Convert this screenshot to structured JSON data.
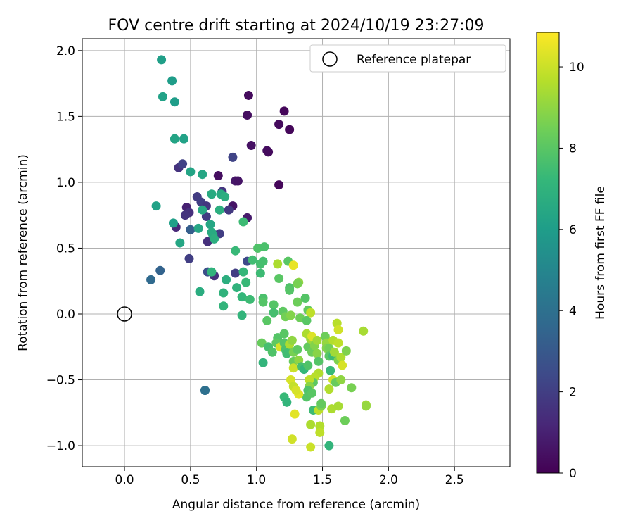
{
  "chart_data": {
    "type": "scatter",
    "title": "FOV centre drift starting at 2024/10/19 23:27:09",
    "xlabel": "Angular distance from reference (arcmin)",
    "ylabel": "Rotation from reference (arcmin)",
    "xlim": [
      -0.32,
      2.92
    ],
    "ylim": [
      -1.16,
      2.09
    ],
    "xticks": [
      "0.0",
      "0.5",
      "1.0",
      "1.5",
      "2.0",
      "2.5"
    ],
    "yticks": [
      "−1.0",
      "−0.5",
      "0.0",
      "0.5",
      "1.0",
      "1.5",
      "2.0"
    ],
    "xtick_values": [
      0,
      0.5,
      1.0,
      1.5,
      2.0,
      2.5
    ],
    "ytick_values": [
      -1.0,
      -0.5,
      0,
      0.5,
      1.0,
      1.5,
      2.0
    ],
    "grid": true,
    "legend": {
      "placement": "top-right",
      "label": "Reference platepar",
      "marker": "open-circle"
    },
    "reference_point": {
      "x": 0.0,
      "y": 0.0
    },
    "colorbar": {
      "label": "Hours from first FF file",
      "range": [
        0,
        10.85
      ],
      "ticks": [
        "0",
        "2",
        "4",
        "6",
        "8",
        "10"
      ],
      "tick_values": [
        0,
        2,
        4,
        6,
        8,
        10
      ],
      "colormap": "viridis",
      "stops": [
        "#440154",
        "#482878",
        "#3e4a89",
        "#31688e",
        "#26828e",
        "#1f9e89",
        "#35b779",
        "#6ece58",
        "#b5de2b",
        "#fde725"
      ]
    },
    "points": [
      {
        "x": 0.94,
        "y": 1.66,
        "c": 0.3
      },
      {
        "x": 0.93,
        "y": 1.51,
        "c": 0.4
      },
      {
        "x": 1.21,
        "y": 1.54,
        "c": 0.2
      },
      {
        "x": 1.17,
        "y": 1.44,
        "c": 0.3
      },
      {
        "x": 1.25,
        "y": 1.4,
        "c": 0.2
      },
      {
        "x": 0.96,
        "y": 1.28,
        "c": 0.5
      },
      {
        "x": 1.08,
        "y": 1.24,
        "c": 0.4
      },
      {
        "x": 1.09,
        "y": 1.23,
        "c": 0.3
      },
      {
        "x": 1.17,
        "y": 0.98,
        "c": 0.2
      },
      {
        "x": 0.71,
        "y": 1.05,
        "c": 0.4
      },
      {
        "x": 0.84,
        "y": 1.01,
        "c": 0.7
      },
      {
        "x": 0.86,
        "y": 1.01,
        "c": 0.6
      },
      {
        "x": 0.82,
        "y": 0.82,
        "c": 0.6
      },
      {
        "x": 0.93,
        "y": 0.73,
        "c": 0.8
      },
      {
        "x": 0.82,
        "y": 1.19,
        "c": 2.2
      },
      {
        "x": 0.41,
        "y": 1.11,
        "c": 1.6
      },
      {
        "x": 0.44,
        "y": 1.14,
        "c": 2.1
      },
      {
        "x": 0.47,
        "y": 0.81,
        "c": 1.0
      },
      {
        "x": 0.49,
        "y": 0.77,
        "c": 1.5
      },
      {
        "x": 0.46,
        "y": 0.75,
        "c": 1.6
      },
      {
        "x": 0.39,
        "y": 0.66,
        "c": 1.2
      },
      {
        "x": 0.5,
        "y": 0.64,
        "c": 3.2
      },
      {
        "x": 0.55,
        "y": 0.89,
        "c": 1.9
      },
      {
        "x": 0.58,
        "y": 0.85,
        "c": 2.0
      },
      {
        "x": 0.62,
        "y": 0.82,
        "c": 1.7
      },
      {
        "x": 0.62,
        "y": 0.74,
        "c": 1.9
      },
      {
        "x": 0.63,
        "y": 0.55,
        "c": 1.5
      },
      {
        "x": 0.72,
        "y": 0.61,
        "c": 2.0
      },
      {
        "x": 0.74,
        "y": 0.93,
        "c": 1.7
      },
      {
        "x": 0.79,
        "y": 0.79,
        "c": 1.8
      },
      {
        "x": 0.68,
        "y": 0.29,
        "c": 1.5
      },
      {
        "x": 0.63,
        "y": 0.32,
        "c": 2.6
      },
      {
        "x": 0.49,
        "y": 0.42,
        "c": 2.0
      },
      {
        "x": 0.84,
        "y": 0.31,
        "c": 2.0
      },
      {
        "x": 0.93,
        "y": 0.4,
        "c": 2.4
      },
      {
        "x": 0.2,
        "y": 0.26,
        "c": 3.7
      },
      {
        "x": 0.27,
        "y": 0.33,
        "c": 3.4
      },
      {
        "x": 0.61,
        "y": -0.58,
        "c": 3.9
      },
      {
        "x": 0.61,
        "y": -0.58,
        "c": 4.0
      },
      {
        "x": 0.28,
        "y": 1.93,
        "c": 6.1
      },
      {
        "x": 0.36,
        "y": 1.77,
        "c": 6.0
      },
      {
        "x": 0.29,
        "y": 1.65,
        "c": 6.2
      },
      {
        "x": 0.38,
        "y": 1.61,
        "c": 6.0
      },
      {
        "x": 0.38,
        "y": 1.33,
        "c": 6.3
      },
      {
        "x": 0.45,
        "y": 1.33,
        "c": 6.2
      },
      {
        "x": 0.5,
        "y": 1.08,
        "c": 6.3
      },
      {
        "x": 0.59,
        "y": 1.06,
        "c": 6.4
      },
      {
        "x": 0.24,
        "y": 0.82,
        "c": 6.2
      },
      {
        "x": 0.37,
        "y": 0.69,
        "c": 6.1
      },
      {
        "x": 0.42,
        "y": 0.54,
        "c": 6.4
      },
      {
        "x": 0.56,
        "y": 0.65,
        "c": 6.4
      },
      {
        "x": 0.59,
        "y": 0.79,
        "c": 6.5
      },
      {
        "x": 0.65,
        "y": 0.68,
        "c": 6.4
      },
      {
        "x": 0.66,
        "y": 0.91,
        "c": 6.6
      },
      {
        "x": 0.73,
        "y": 0.91,
        "c": 6.6
      },
      {
        "x": 0.76,
        "y": 0.89,
        "c": 6.8
      },
      {
        "x": 0.72,
        "y": 0.79,
        "c": 6.8
      },
      {
        "x": 0.67,
        "y": 0.6,
        "c": 6.5
      },
      {
        "x": 0.66,
        "y": 0.62,
        "c": 6.6
      },
      {
        "x": 0.68,
        "y": 0.57,
        "c": 6.8
      },
      {
        "x": 0.66,
        "y": 0.32,
        "c": 7.0
      },
      {
        "x": 0.57,
        "y": 0.17,
        "c": 6.7
      },
      {
        "x": 0.77,
        "y": 0.26,
        "c": 6.8
      },
      {
        "x": 0.75,
        "y": 0.16,
        "c": 7.0
      },
      {
        "x": 0.75,
        "y": 0.06,
        "c": 7.1
      },
      {
        "x": 0.85,
        "y": 0.2,
        "c": 7.0
      },
      {
        "x": 0.84,
        "y": 0.48,
        "c": 7.3
      },
      {
        "x": 0.9,
        "y": 0.7,
        "c": 7.4
      },
      {
        "x": 0.9,
        "y": 0.32,
        "c": 7.2
      },
      {
        "x": 0.92,
        "y": 0.24,
        "c": 7.3
      },
      {
        "x": 0.89,
        "y": 0.13,
        "c": 7.2
      },
      {
        "x": 0.95,
        "y": 0.11,
        "c": 7.4
      },
      {
        "x": 0.89,
        "y": -0.01,
        "c": 7.1
      },
      {
        "x": 0.97,
        "y": 0.41,
        "c": 7.5
      },
      {
        "x": 1.01,
        "y": 0.5,
        "c": 7.8
      },
      {
        "x": 1.03,
        "y": 0.38,
        "c": 7.6
      },
      {
        "x": 1.03,
        "y": 0.31,
        "c": 7.4
      },
      {
        "x": 1.06,
        "y": 0.51,
        "c": 7.7
      },
      {
        "x": 1.05,
        "y": 0.4,
        "c": 7.6
      },
      {
        "x": 1.05,
        "y": 0.12,
        "c": 7.7
      },
      {
        "x": 1.05,
        "y": 0.09,
        "c": 7.9
      },
      {
        "x": 1.08,
        "y": -0.05,
        "c": 8.0
      },
      {
        "x": 1.13,
        "y": 0.07,
        "c": 7.9
      },
      {
        "x": 1.13,
        "y": 0.01,
        "c": 7.6
      },
      {
        "x": 1.17,
        "y": 0.27,
        "c": 8.0
      },
      {
        "x": 1.16,
        "y": 0.38,
        "c": 9.5
      },
      {
        "x": 1.2,
        "y": 0.02,
        "c": 8.1
      },
      {
        "x": 1.24,
        "y": 0.4,
        "c": 8.0
      },
      {
        "x": 1.25,
        "y": 0.2,
        "c": 7.8
      },
      {
        "x": 1.25,
        "y": 0.18,
        "c": 7.9
      },
      {
        "x": 1.28,
        "y": 0.37,
        "c": 10.5
      },
      {
        "x": 1.32,
        "y": 0.24,
        "c": 9.0
      },
      {
        "x": 1.31,
        "y": 0.23,
        "c": 8.6
      },
      {
        "x": 1.31,
        "y": 0.09,
        "c": 8.4
      },
      {
        "x": 1.37,
        "y": 0.12,
        "c": 7.9
      },
      {
        "x": 1.22,
        "y": -0.02,
        "c": 8.5
      },
      {
        "x": 1.26,
        "y": -0.01,
        "c": 8.8
      },
      {
        "x": 1.33,
        "y": -0.03,
        "c": 8.4
      },
      {
        "x": 1.39,
        "y": 0.03,
        "c": 8.2
      },
      {
        "x": 1.41,
        "y": 0.01,
        "c": 9.8
      },
      {
        "x": 1.38,
        "y": -0.05,
        "c": 8.0
      },
      {
        "x": 1.04,
        "y": -0.22,
        "c": 8.3
      },
      {
        "x": 1.05,
        "y": -0.37,
        "c": 7.1
      },
      {
        "x": 1.09,
        "y": -0.25,
        "c": 7.6
      },
      {
        "x": 1.12,
        "y": -0.29,
        "c": 7.8
      },
      {
        "x": 1.16,
        "y": -0.18,
        "c": 7.9
      },
      {
        "x": 1.15,
        "y": -0.22,
        "c": 8.1
      },
      {
        "x": 1.18,
        "y": -0.25,
        "c": 10.2
      },
      {
        "x": 1.21,
        "y": -0.15,
        "c": 8.0
      },
      {
        "x": 1.21,
        "y": -0.22,
        "c": 7.9
      },
      {
        "x": 1.22,
        "y": -0.27,
        "c": 7.7
      },
      {
        "x": 1.23,
        "y": -0.3,
        "c": 7.5
      },
      {
        "x": 1.25,
        "y": -0.23,
        "c": 9.5
      },
      {
        "x": 1.27,
        "y": -0.2,
        "c": 9.0
      },
      {
        "x": 1.28,
        "y": -0.29,
        "c": 8.6
      },
      {
        "x": 1.28,
        "y": -0.36,
        "c": 8.3
      },
      {
        "x": 1.28,
        "y": -0.41,
        "c": 10.0
      },
      {
        "x": 1.31,
        "y": -0.27,
        "c": 8.1
      },
      {
        "x": 1.32,
        "y": -0.35,
        "c": 9.0
      },
      {
        "x": 1.34,
        "y": -0.4,
        "c": 7.6
      },
      {
        "x": 1.36,
        "y": -0.42,
        "c": 7.2
      },
      {
        "x": 1.39,
        "y": -0.39,
        "c": 7.8
      },
      {
        "x": 1.38,
        "y": -0.15,
        "c": 9.5
      },
      {
        "x": 1.39,
        "y": -0.25,
        "c": 8.2
      },
      {
        "x": 1.41,
        "y": -0.19,
        "c": 9.2
      },
      {
        "x": 1.42,
        "y": -0.29,
        "c": 8.4
      },
      {
        "x": 1.42,
        "y": -0.17,
        "c": 10.3
      },
      {
        "x": 1.44,
        "y": -0.24,
        "c": 8.8
      },
      {
        "x": 1.46,
        "y": -0.2,
        "c": 9.3
      },
      {
        "x": 1.46,
        "y": -0.3,
        "c": 8.9
      },
      {
        "x": 1.47,
        "y": -0.36,
        "c": 7.9
      },
      {
        "x": 1.47,
        "y": -0.45,
        "c": 9.6
      },
      {
        "x": 1.44,
        "y": -0.48,
        "c": 9.7
      },
      {
        "x": 1.43,
        "y": -0.52,
        "c": 8.1
      },
      {
        "x": 1.4,
        "y": -0.5,
        "c": 9.8
      },
      {
        "x": 1.4,
        "y": -0.55,
        "c": 8.9
      },
      {
        "x": 1.39,
        "y": -0.58,
        "c": 7.8
      },
      {
        "x": 1.38,
        "y": -0.63,
        "c": 7.9
      },
      {
        "x": 1.42,
        "y": -0.6,
        "c": 8.0
      },
      {
        "x": 1.43,
        "y": -0.73,
        "c": 7.4
      },
      {
        "x": 1.47,
        "y": -0.73,
        "c": 9.8
      },
      {
        "x": 1.49,
        "y": -0.7,
        "c": 8.6
      },
      {
        "x": 1.49,
        "y": -0.68,
        "c": 8.2
      },
      {
        "x": 1.26,
        "y": -0.5,
        "c": 10.2
      },
      {
        "x": 1.28,
        "y": -0.55,
        "c": 9.9
      },
      {
        "x": 1.32,
        "y": -0.61,
        "c": 10.4
      },
      {
        "x": 1.3,
        "y": -0.58,
        "c": 10.2
      },
      {
        "x": 1.21,
        "y": -0.63,
        "c": 7.3
      },
      {
        "x": 1.23,
        "y": -0.67,
        "c": 7.1
      },
      {
        "x": 1.29,
        "y": -0.76,
        "c": 10.4
      },
      {
        "x": 1.41,
        "y": -0.84,
        "c": 9.5
      },
      {
        "x": 1.48,
        "y": -0.85,
        "c": 9.6
      },
      {
        "x": 1.48,
        "y": -0.9,
        "c": 9.8
      },
      {
        "x": 1.27,
        "y": -0.95,
        "c": 10.1
      },
      {
        "x": 1.41,
        "y": -1.01,
        "c": 10.0
      },
      {
        "x": 1.55,
        "y": -1.0,
        "c": 7.1
      },
      {
        "x": 1.52,
        "y": -0.17,
        "c": 8.4
      },
      {
        "x": 1.53,
        "y": -0.22,
        "c": 9.1
      },
      {
        "x": 1.53,
        "y": -0.26,
        "c": 8.8
      },
      {
        "x": 1.55,
        "y": -0.26,
        "c": 8.5
      },
      {
        "x": 1.55,
        "y": -0.32,
        "c": 8.0
      },
      {
        "x": 1.58,
        "y": -0.32,
        "c": 7.4
      },
      {
        "x": 1.58,
        "y": -0.2,
        "c": 9.6
      },
      {
        "x": 1.59,
        "y": -0.29,
        "c": 9.3
      },
      {
        "x": 1.61,
        "y": -0.07,
        "c": 9.7
      },
      {
        "x": 1.62,
        "y": -0.12,
        "c": 10.1
      },
      {
        "x": 1.62,
        "y": -0.22,
        "c": 9.8
      },
      {
        "x": 1.56,
        "y": -0.43,
        "c": 7.3
      },
      {
        "x": 1.62,
        "y": -0.35,
        "c": 8.7
      },
      {
        "x": 1.64,
        "y": -0.33,
        "c": 9.5
      },
      {
        "x": 1.65,
        "y": -0.39,
        "c": 10.2
      },
      {
        "x": 1.68,
        "y": -0.28,
        "c": 8.7
      },
      {
        "x": 1.55,
        "y": -0.57,
        "c": 9.6
      },
      {
        "x": 1.58,
        "y": -0.5,
        "c": 10.1
      },
      {
        "x": 1.6,
        "y": -0.52,
        "c": 8.3
      },
      {
        "x": 1.64,
        "y": -0.5,
        "c": 9.0
      },
      {
        "x": 1.57,
        "y": -0.72,
        "c": 9.5
      },
      {
        "x": 1.62,
        "y": -0.7,
        "c": 9.4
      },
      {
        "x": 1.67,
        "y": -0.81,
        "c": 8.4
      },
      {
        "x": 1.72,
        "y": -0.56,
        "c": 8.6
      },
      {
        "x": 1.81,
        "y": -0.13,
        "c": 9.4
      },
      {
        "x": 1.83,
        "y": -0.69,
        "c": 9.3
      },
      {
        "x": 1.83,
        "y": -0.7,
        "c": 9.1
      }
    ]
  }
}
